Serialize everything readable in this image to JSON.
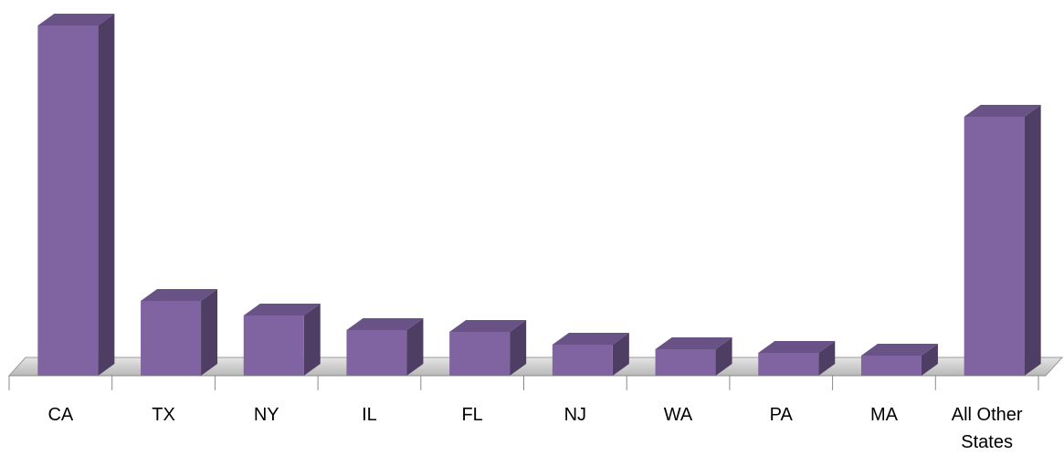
{
  "chart_data": {
    "type": "bar3d",
    "categories": [
      "CA",
      "TX",
      "NY",
      "IL",
      "FL",
      "NJ",
      "WA",
      "PA",
      "MA",
      "All Other States"
    ],
    "values": [
      384,
      82,
      66,
      50,
      48,
      34,
      29,
      25,
      22,
      284
    ],
    "color": "#8064a2"
  }
}
